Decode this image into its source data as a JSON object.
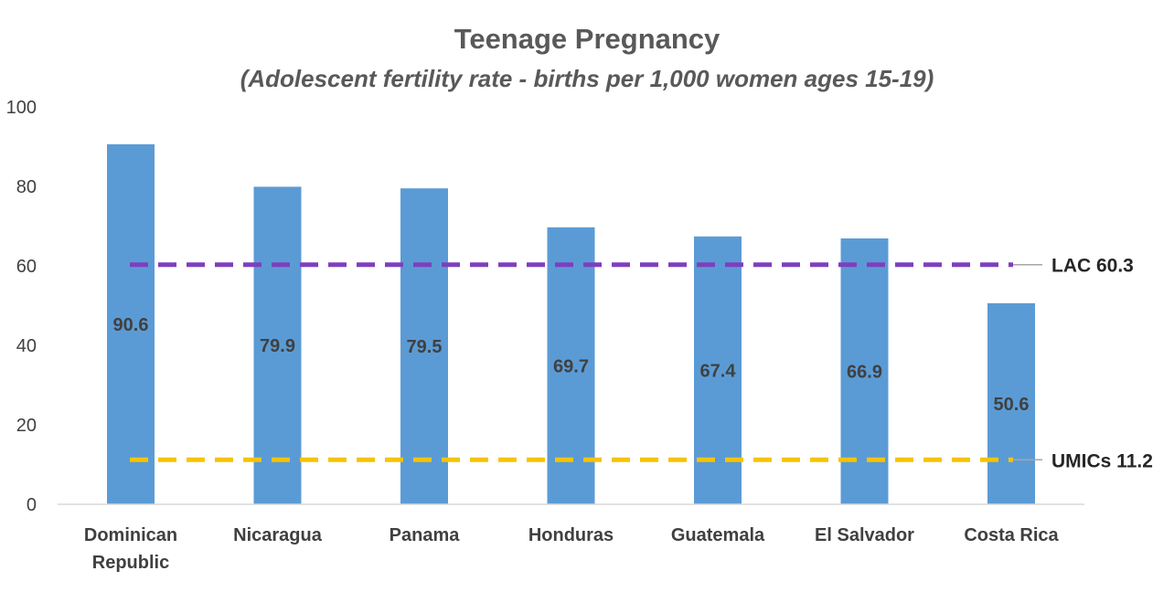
{
  "chart_data": {
    "type": "bar",
    "title": "Teenage Pregnancy",
    "subtitle": "(Adolescent fertility rate - births per 1,000 women ages 15-19)",
    "xlabel": "",
    "ylabel": "",
    "ylim": [
      0,
      100
    ],
    "yticks": [
      0,
      20,
      40,
      60,
      80,
      100
    ],
    "categories": [
      [
        "Dominican",
        "Republic"
      ],
      [
        "Nicaragua"
      ],
      [
        "Panama"
      ],
      [
        "Honduras"
      ],
      [
        "Guatemala"
      ],
      [
        "El Salvador"
      ],
      [
        "Costa Rica"
      ]
    ],
    "values": [
      90.6,
      79.9,
      79.5,
      69.7,
      67.4,
      66.9,
      50.6
    ],
    "data_labels": [
      "90.6",
      "79.9",
      "79.5",
      "69.7",
      "67.4",
      "66.9",
      "50.6"
    ],
    "bar_color": "#5b9bd5",
    "grid": false,
    "legend": "none",
    "reference_lines": [
      {
        "name": "LAC",
        "label": "LAC 60.3",
        "value": 60.3,
        "color": "#7e3fbf",
        "style": "dashed"
      },
      {
        "name": "UMICs",
        "label": "UMICs 11.2",
        "value": 11.2,
        "color": "#f5c400",
        "style": "dashed"
      }
    ]
  }
}
